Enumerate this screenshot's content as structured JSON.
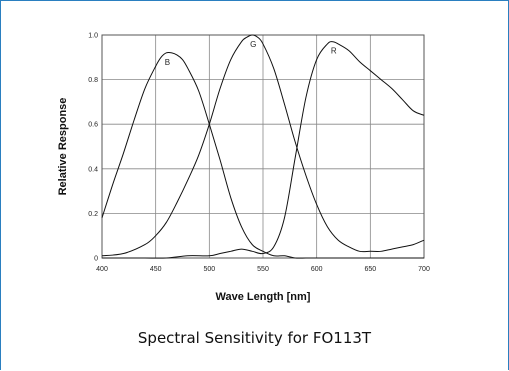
{
  "caption": "Spectral Sensitivity for FO113T",
  "chart_data": {
    "type": "line",
    "title": "",
    "xlabel": "Wave Length [nm]",
    "ylabel": "Relative Response",
    "xlim": [
      400,
      700
    ],
    "ylim": [
      0,
      1.0
    ],
    "xticks": [
      400,
      450,
      500,
      550,
      600,
      650,
      700
    ],
    "yticks": [
      0,
      0.2,
      0.4,
      0.6,
      0.8,
      1.0
    ],
    "xtick_labels": [
      "400",
      "450",
      "500",
      "550",
      "600",
      "650",
      "700"
    ],
    "ytick_labels": [
      "0",
      "0.2",
      "0.4",
      "0.6",
      "0.8",
      "1.0"
    ],
    "grid": true,
    "series": [
      {
        "name": "B",
        "color": "#111111",
        "x": [
          400,
          410,
          420,
          430,
          440,
          450,
          455,
          460,
          465,
          470,
          475,
          480,
          490,
          500,
          510,
          520,
          530,
          540,
          550,
          560,
          570,
          580,
          590,
          600,
          610,
          620,
          640,
          660,
          680,
          700
        ],
        "y": [
          0.18,
          0.33,
          0.47,
          0.62,
          0.76,
          0.86,
          0.9,
          0.92,
          0.92,
          0.91,
          0.89,
          0.85,
          0.75,
          0.6,
          0.44,
          0.27,
          0.14,
          0.06,
          0.03,
          0.01,
          0.01,
          0.0,
          0.0,
          0.0,
          0.0,
          0.0,
          0.0,
          0.0,
          0.0,
          0.0
        ]
      },
      {
        "name": "G",
        "color": "#111111",
        "x": [
          400,
          420,
          440,
          450,
          460,
          470,
          480,
          490,
          500,
          510,
          520,
          530,
          535,
          540,
          545,
          550,
          560,
          570,
          580,
          590,
          600,
          610,
          620,
          630,
          640,
          650,
          660,
          670,
          680,
          690,
          700
        ],
        "y": [
          0.01,
          0.02,
          0.06,
          0.1,
          0.16,
          0.25,
          0.35,
          0.46,
          0.6,
          0.76,
          0.89,
          0.97,
          0.99,
          1.0,
          0.99,
          0.96,
          0.85,
          0.69,
          0.52,
          0.37,
          0.24,
          0.14,
          0.08,
          0.05,
          0.03,
          0.03,
          0.03,
          0.04,
          0.05,
          0.06,
          0.08
        ]
      },
      {
        "name": "R",
        "color": "#111111",
        "x": [
          400,
          420,
          440,
          460,
          480,
          500,
          510,
          520,
          530,
          540,
          550,
          560,
          570,
          580,
          590,
          600,
          610,
          615,
          620,
          630,
          640,
          650,
          660,
          670,
          680,
          690,
          700
        ],
        "y": [
          0.0,
          0.0,
          0.0,
          0.0,
          0.01,
          0.01,
          0.02,
          0.03,
          0.04,
          0.03,
          0.02,
          0.05,
          0.18,
          0.45,
          0.72,
          0.89,
          0.96,
          0.97,
          0.96,
          0.93,
          0.88,
          0.84,
          0.8,
          0.76,
          0.71,
          0.66,
          0.64
        ]
      }
    ]
  }
}
